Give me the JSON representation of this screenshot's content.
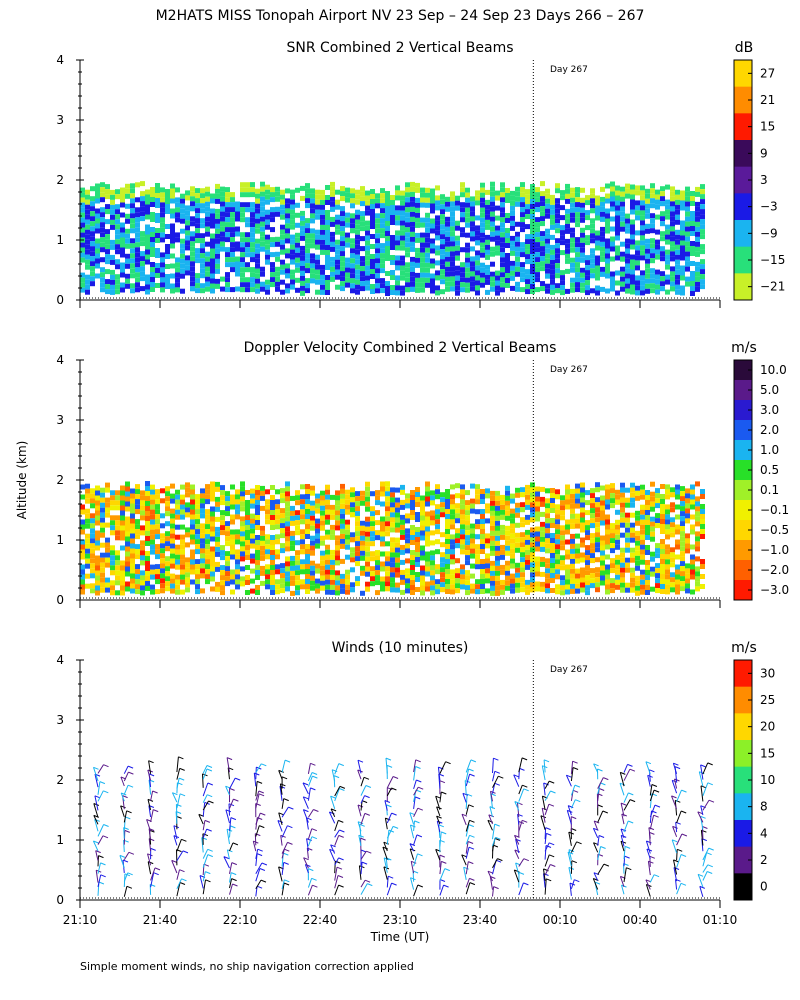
{
  "figure": {
    "title": "M2HATS MISS Tonopah Airport NV  23 Sep – 24 Sep 23 Days 266 – 267",
    "ylabel": "Altitude (km)",
    "xlabel": "Time (UT)",
    "footnote": "Simple moment winds, no ship navigation correction applied",
    "day_marker_label": "Day 267"
  },
  "chart_data": [
    {
      "type": "heatmap",
      "title": "SNR Combined 2 Vertical Beams",
      "colorbar_unit": "dB",
      "colorbar_ticks": [
        "27",
        "21",
        "15",
        "9",
        "3",
        "−3",
        "−9",
        "−15",
        "−21"
      ],
      "colorbar_colors": [
        "#ffd700",
        "#ff8c00",
        "#ff1a00",
        "#3a0a5a",
        "#5a1a9a",
        "#1a1ae6",
        "#1ab4f0",
        "#28e07a",
        "#c8f028"
      ],
      "y_ticks": [
        "0",
        "1",
        "2",
        "3",
        "4"
      ],
      "ylim": [
        0,
        4
      ],
      "xlim": [
        "21:10",
        "01:10"
      ],
      "day_marker_time": "00:00",
      "layer_top_km": 1.9
    },
    {
      "type": "heatmap",
      "title": "Doppler Velocity Combined 2 Vertical Beams",
      "colorbar_unit": "m/s",
      "colorbar_ticks": [
        "10.0",
        "5.0",
        "3.0",
        "2.0",
        "1.0",
        "0.5",
        "0.1",
        "−0.1",
        "−0.5",
        "−1.0",
        "−2.0",
        "−3.0"
      ],
      "colorbar_colors": [
        "#2a0a3a",
        "#5a1a8a",
        "#2a1ad0",
        "#1a5af0",
        "#1ab4f0",
        "#28e028",
        "#a0f028",
        "#f0f000",
        "#ffd700",
        "#ff9a00",
        "#ff6000",
        "#ff1a00"
      ],
      "y_ticks": [
        "0",
        "1",
        "2",
        "3",
        "4"
      ],
      "ylim": [
        0,
        4
      ],
      "xlim": [
        "21:10",
        "01:10"
      ],
      "day_marker_time": "00:00",
      "layer_top_km": 1.9
    },
    {
      "type": "scatter",
      "title": "Winds (10 minutes)",
      "colorbar_unit": "m/s",
      "colorbar_ticks": [
        "30",
        "25",
        "20",
        "15",
        "10",
        "8",
        "4",
        "2",
        "0"
      ],
      "colorbar_colors": [
        "#ff1a00",
        "#ff8c00",
        "#ffd700",
        "#8cf028",
        "#28e07a",
        "#1ab4f0",
        "#1a1ae6",
        "#5a1a8a",
        "#000000"
      ],
      "y_ticks": [
        "0",
        "1",
        "2",
        "3",
        "4"
      ],
      "ylim": [
        0,
        4
      ],
      "x_ticks": [
        "21:10",
        "21:40",
        "22:10",
        "22:40",
        "23:10",
        "23:40",
        "00:10",
        "00:40",
        "01:10"
      ],
      "xlim": [
        "21:10",
        "01:10"
      ],
      "day_marker_time": "00:00"
    }
  ]
}
